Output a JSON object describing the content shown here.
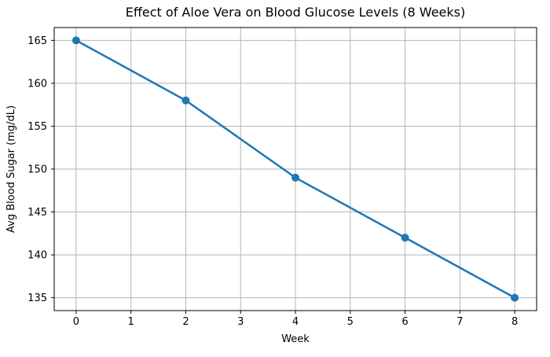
{
  "chart_data": {
    "type": "line",
    "title": "Effect of Aloe Vera on Blood Glucose Levels (8 Weeks)",
    "xlabel": "Week",
    "ylabel": "Avg Blood Sugar (mg/dL)",
    "x": [
      0,
      2,
      4,
      6,
      8
    ],
    "series": [
      {
        "name": "Avg Blood Sugar",
        "values": [
          165,
          158,
          149,
          142,
          135
        ]
      }
    ],
    "xticks": [
      0,
      1,
      2,
      3,
      4,
      5,
      6,
      7,
      8
    ],
    "yticks": [
      135,
      140,
      145,
      150,
      155,
      160,
      165
    ],
    "xlim": [
      -0.4,
      8.4
    ],
    "ylim": [
      133.5,
      166.5
    ],
    "grid": true,
    "legend": false,
    "colors": {
      "line": "#1f77b4",
      "marker": "#1f77b4",
      "grid": "#b4b4b4",
      "spine": "#000000",
      "text": "#000000",
      "background": "#ffffff"
    },
    "marker": "circle"
  }
}
